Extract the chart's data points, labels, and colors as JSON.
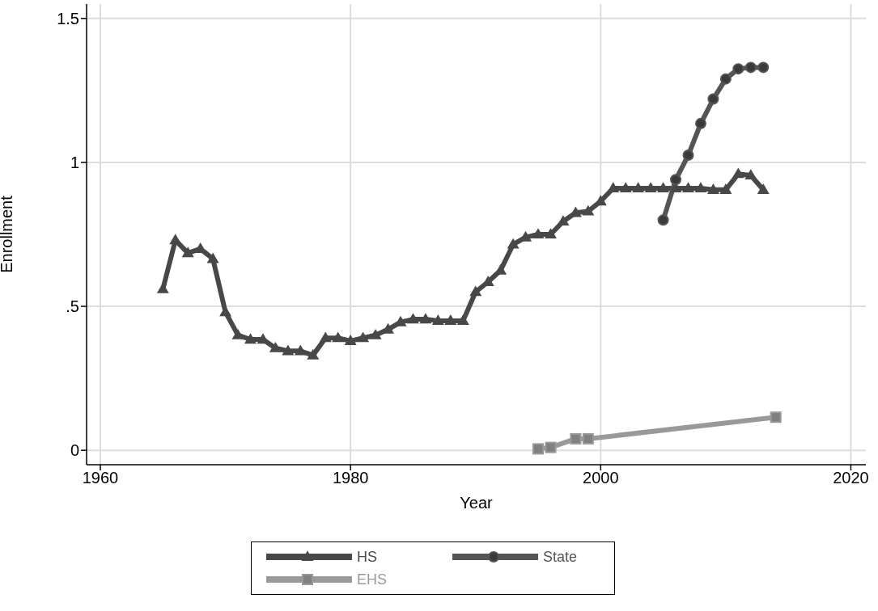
{
  "chart_data": {
    "type": "line",
    "xlabel": "Year",
    "ylabel": "Enrollment",
    "xlim": [
      1958.9,
      2021.2
    ],
    "ylim": [
      -0.05,
      1.55
    ],
    "xticks": [
      1960,
      1980,
      2000,
      2020
    ],
    "yticks": [
      0,
      {
        "value": 0.5,
        "label": ".5"
      },
      1,
      1.5
    ],
    "grid": true,
    "legend": "bottom",
    "line_style": "solid",
    "series": [
      {
        "name": "HS",
        "color": "#484848",
        "marker": "triangle",
        "x": [
          1965,
          1966,
          1967,
          1968,
          1969,
          1970,
          1971,
          1972,
          1973,
          1974,
          1975,
          1976,
          1977,
          1978,
          1979,
          1980,
          1981,
          1982,
          1983,
          1984,
          1985,
          1986,
          1987,
          1988,
          1989,
          1990,
          1991,
          1992,
          1993,
          1994,
          1995,
          1996,
          1997,
          1998,
          1999,
          2000,
          2001,
          2002,
          2003,
          2004,
          2005,
          2006,
          2007,
          2008,
          2009,
          2010,
          2011,
          2012,
          2013
        ],
        "values": [
          0.56,
          0.73,
          0.685,
          0.7,
          0.665,
          0.48,
          0.4,
          0.385,
          0.385,
          0.355,
          0.345,
          0.345,
          0.33,
          0.39,
          0.39,
          0.38,
          0.39,
          0.4,
          0.42,
          0.445,
          0.455,
          0.455,
          0.45,
          0.45,
          0.45,
          0.55,
          0.585,
          0.625,
          0.715,
          0.74,
          0.75,
          0.75,
          0.795,
          0.825,
          0.83,
          0.865,
          0.91,
          0.91,
          0.91,
          0.91,
          0.91,
          0.91,
          0.91,
          0.91,
          0.905,
          0.905,
          0.96,
          0.955,
          0.905
        ]
      },
      {
        "name": "State",
        "color": "#555555",
        "marker": "circle",
        "x": [
          2005,
          2006,
          2007,
          2008,
          2009,
          2010,
          2011,
          2012,
          2013
        ],
        "values": [
          0.8,
          0.94,
          1.025,
          1.135,
          1.22,
          1.29,
          1.325,
          1.33,
          1.33
        ]
      },
      {
        "name": "EHS",
        "color": "#999999",
        "marker": "square",
        "x": [
          1995,
          1996,
          1998,
          1999,
          2014
        ],
        "values": [
          0.005,
          0.01,
          0.04,
          0.04,
          0.115
        ]
      }
    ]
  }
}
